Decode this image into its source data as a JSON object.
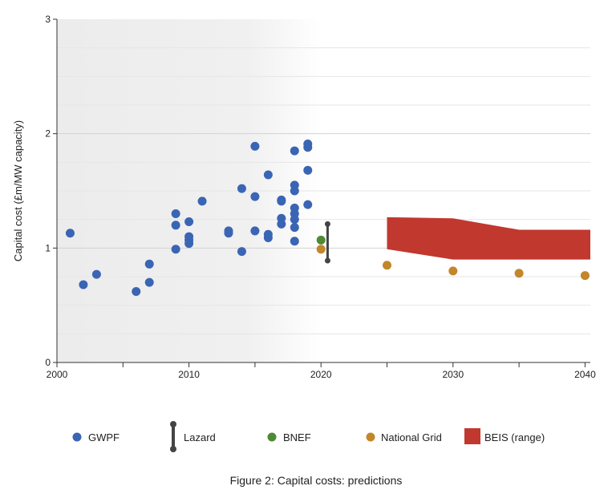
{
  "chart_data": {
    "type": "scatter",
    "caption": "Figure 2: Capital costs: predictions",
    "ylabel": "Capital cost (£m/MW capacity)",
    "xlabel": "",
    "xlim": [
      2000,
      2040.4
    ],
    "ylim": [
      0,
      3
    ],
    "x_ticks": [
      2000,
      2010,
      2020,
      2030,
      2040
    ],
    "x_minor_ticks": [
      2005,
      2015,
      2025,
      2035
    ],
    "y_ticks": [
      0,
      1,
      2,
      3
    ],
    "grid": "horizontal",
    "legend_position": "bottom",
    "colors": {
      "GWPF": "#3a65b4",
      "Lazard": "#444444",
      "BNEF": "#4e8a35",
      "National Grid": "#c4862a",
      "BEIS (range)": "#c1382f"
    },
    "series": [
      {
        "name": "GWPF",
        "kind": "scatter",
        "points": [
          [
            2001,
            1.13
          ],
          [
            2002,
            0.68
          ],
          [
            2003,
            0.77
          ],
          [
            2006,
            0.62
          ],
          [
            2007,
            0.7
          ],
          [
            2007,
            0.86
          ],
          [
            2009,
            0.99
          ],
          [
            2009,
            1.2
          ],
          [
            2009,
            1.3
          ],
          [
            2010,
            1.04
          ],
          [
            2010,
            1.07
          ],
          [
            2010,
            1.1
          ],
          [
            2010,
            1.23
          ],
          [
            2011,
            1.41
          ],
          [
            2013,
            1.13
          ],
          [
            2013,
            1.15
          ],
          [
            2014,
            0.97
          ],
          [
            2014,
            1.52
          ],
          [
            2015,
            1.15
          ],
          [
            2015,
            1.45
          ],
          [
            2015,
            1.89
          ],
          [
            2016,
            1.09
          ],
          [
            2016,
            1.12
          ],
          [
            2016,
            1.64
          ],
          [
            2017,
            1.21
          ],
          [
            2017,
            1.26
          ],
          [
            2017,
            1.41
          ],
          [
            2017,
            1.42
          ],
          [
            2018,
            1.06
          ],
          [
            2018,
            1.18
          ],
          [
            2018,
            1.25
          ],
          [
            2018,
            1.3
          ],
          [
            2018,
            1.35
          ],
          [
            2018,
            1.5
          ],
          [
            2018,
            1.55
          ],
          [
            2018,
            1.85
          ],
          [
            2019,
            1.38
          ],
          [
            2019,
            1.68
          ],
          [
            2019,
            1.88
          ],
          [
            2019,
            1.91
          ]
        ]
      },
      {
        "name": "Lazard",
        "kind": "range",
        "x": 2020.5,
        "low": 0.89,
        "high": 1.21
      },
      {
        "name": "BNEF",
        "kind": "scatter",
        "points": [
          [
            2020,
            1.07
          ]
        ]
      },
      {
        "name": "National Grid",
        "kind": "scatter",
        "points": [
          [
            2020,
            0.99
          ],
          [
            2025,
            0.85
          ],
          [
            2030,
            0.8
          ],
          [
            2035,
            0.78
          ],
          [
            2040,
            0.76
          ]
        ]
      },
      {
        "name": "BEIS (range)",
        "kind": "band",
        "x": [
          2025,
          2030,
          2035,
          2040.4
        ],
        "high": [
          1.27,
          1.26,
          1.16,
          1.16
        ],
        "low": [
          0.99,
          0.9,
          0.9,
          0.9
        ]
      }
    ]
  }
}
